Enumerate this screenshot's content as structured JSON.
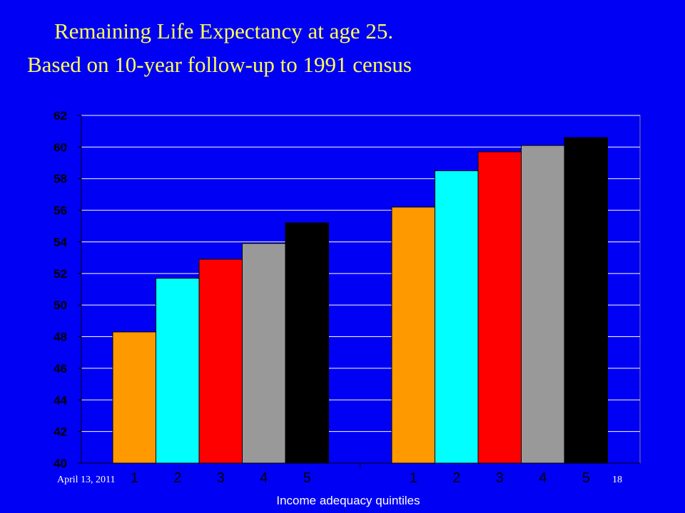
{
  "slide": {
    "title_line1": "Remaining Life Expectancy at age 25.",
    "title_line2": "Based on 10-year follow-up to 1991 census",
    "date": "April 13, 2011",
    "page_number": "18"
  },
  "colors": {
    "background": "#0000f5",
    "title": "#ffff55",
    "quintile": [
      "#ff9900",
      "#00ffff",
      "#ff0000",
      "#999999",
      "#000000"
    ],
    "axis_text": "#000000",
    "xlabel_text": "#ffffff"
  },
  "chart_data": {
    "type": "bar",
    "title": "",
    "xlabel": "Income adequacy quintiles",
    "ylabel": "",
    "ylim": [
      40,
      62
    ],
    "y_ticks": [
      40,
      42,
      44,
      46,
      48,
      50,
      52,
      54,
      56,
      58,
      60,
      62
    ],
    "grid": true,
    "groups": [
      {
        "name": "",
        "categories": [
          "1",
          "2",
          "3",
          "4",
          "5"
        ],
        "values": [
          48.3,
          51.7,
          52.9,
          53.9,
          55.2
        ]
      },
      {
        "name": "",
        "categories": [
          "1",
          "2",
          "3",
          "4",
          "5"
        ],
        "values": [
          56.2,
          58.5,
          59.7,
          60.1,
          60.6
        ]
      }
    ]
  }
}
